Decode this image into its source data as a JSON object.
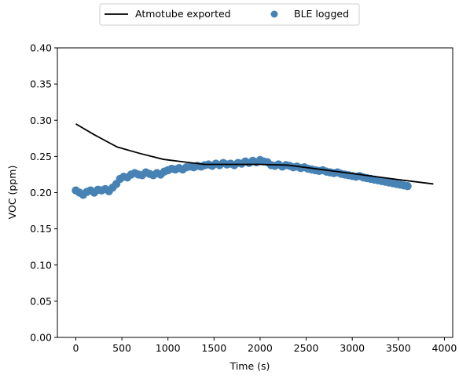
{
  "chart_data": {
    "type": "line",
    "xlabel": "Time (s)",
    "ylabel": "VOC (ppm)",
    "xlim": [
      -200,
      4090
    ],
    "ylim": [
      0,
      0.4
    ],
    "x_ticks": [
      0,
      500,
      1000,
      1500,
      2000,
      2500,
      3000,
      3500,
      4000
    ],
    "y_ticks": [
      0.0,
      0.05,
      0.1,
      0.15,
      0.2,
      0.25,
      0.3,
      0.35,
      0.4
    ],
    "x_tick_labels": [
      "0",
      "500",
      "1000",
      "1500",
      "2000",
      "2500",
      "3000",
      "3500",
      "4000"
    ],
    "y_tick_labels": [
      "0.00",
      "0.05",
      "0.10",
      "0.15",
      "0.20",
      "0.25",
      "0.30",
      "0.35",
      "0.40"
    ],
    "grid": false,
    "legend": {
      "placement": "top-center outside",
      "entries": [
        "Atmotube exported",
        "BLE logged"
      ]
    },
    "series": [
      {
        "name": "Atmotube exported",
        "type": "line",
        "color": "#000000",
        "x": [
          0,
          200,
          450,
          700,
          950,
          1200,
          1400,
          1700,
          2000,
          2300,
          2600,
          2900,
          3200,
          3500,
          3880
        ],
        "y": [
          0.295,
          0.28,
          0.263,
          0.254,
          0.246,
          0.242,
          0.239,
          0.239,
          0.239,
          0.238,
          0.233,
          0.228,
          0.223,
          0.218,
          0.212
        ]
      },
      {
        "name": "BLE logged",
        "type": "scatter",
        "color": "#4682b4",
        "x": [
          0,
          40,
          80,
          120,
          160,
          200,
          240,
          280,
          320,
          360,
          400,
          440,
          480,
          520,
          560,
          600,
          640,
          680,
          720,
          760,
          800,
          840,
          880,
          920,
          960,
          1000,
          1040,
          1080,
          1120,
          1160,
          1200,
          1240,
          1280,
          1320,
          1360,
          1400,
          1440,
          1480,
          1520,
          1560,
          1600,
          1640,
          1680,
          1720,
          1760,
          1800,
          1840,
          1880,
          1920,
          1960,
          2000,
          2040,
          2080,
          2120,
          2160,
          2200,
          2240,
          2280,
          2320,
          2360,
          2400,
          2440,
          2480,
          2520,
          2560,
          2600,
          2640,
          2680,
          2720,
          2760,
          2800,
          2840,
          2880,
          2920,
          2960,
          3000,
          3040,
          3080,
          3120,
          3160,
          3200,
          3240,
          3280,
          3320,
          3360,
          3400,
          3440,
          3480,
          3520,
          3560,
          3600
        ],
        "y": [
          0.203,
          0.2,
          0.197,
          0.201,
          0.203,
          0.2,
          0.204,
          0.203,
          0.205,
          0.202,
          0.207,
          0.212,
          0.219,
          0.222,
          0.221,
          0.225,
          0.227,
          0.225,
          0.224,
          0.228,
          0.226,
          0.224,
          0.227,
          0.225,
          0.229,
          0.231,
          0.233,
          0.232,
          0.234,
          0.232,
          0.235,
          0.236,
          0.235,
          0.237,
          0.236,
          0.238,
          0.239,
          0.237,
          0.24,
          0.238,
          0.241,
          0.239,
          0.24,
          0.238,
          0.241,
          0.24,
          0.243,
          0.241,
          0.244,
          0.242,
          0.245,
          0.243,
          0.242,
          0.238,
          0.237,
          0.239,
          0.236,
          0.238,
          0.237,
          0.235,
          0.236,
          0.234,
          0.235,
          0.233,
          0.232,
          0.231,
          0.23,
          0.231,
          0.229,
          0.228,
          0.227,
          0.228,
          0.226,
          0.225,
          0.224,
          0.223,
          0.222,
          0.223,
          0.221,
          0.22,
          0.219,
          0.218,
          0.217,
          0.216,
          0.215,
          0.214,
          0.213,
          0.212,
          0.211,
          0.21,
          0.209
        ]
      }
    ]
  }
}
